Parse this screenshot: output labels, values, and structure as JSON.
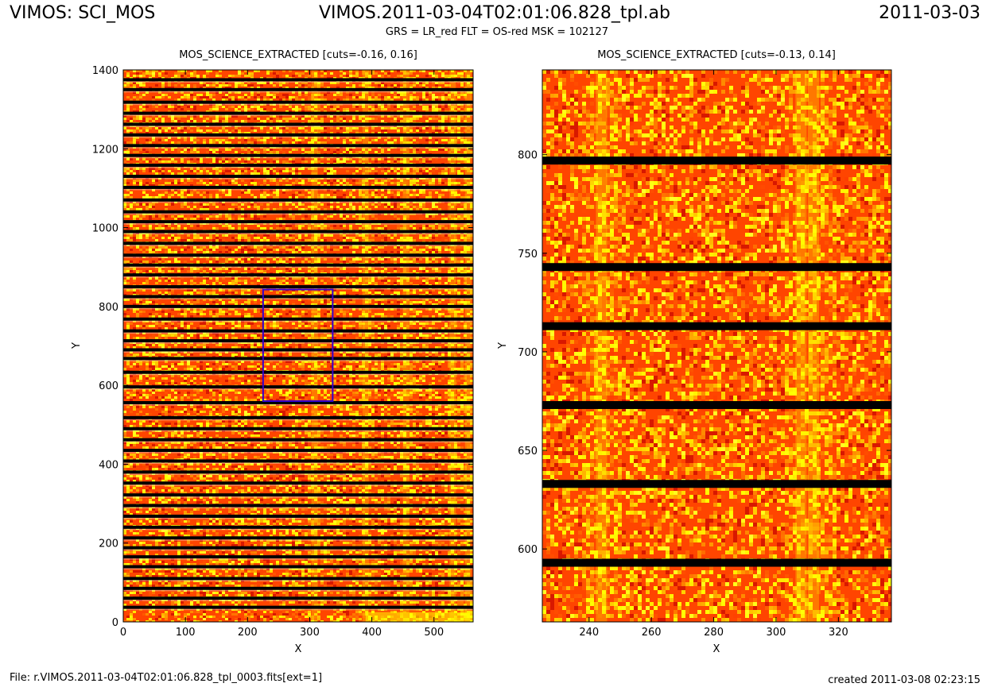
{
  "header": {
    "instrument": "VIMOS: SCI_MOS",
    "template": "VIMOS.2011-03-04T02:01:06.828_tpl.ab",
    "date": "2011-03-03",
    "subtitle": "GRS = LR_red FLT = OS-red MSK = 102127"
  },
  "footer": {
    "file": "File: r.VIMOS.2011-03-04T02:01:06.828_tpl_0003.fits[ext=1]",
    "created": "created 2011-03-08 02:23:15"
  },
  "colors": {
    "background": "#ff4500",
    "bright": "#ffff00",
    "dark": "#000000",
    "zoom_box": "#3300cc"
  },
  "chart_data": [
    {
      "type": "heatmap",
      "title": "MOS_SCIENCE_EXTRACTED [cuts=-0.16, 0.16]",
      "xlabel": "X",
      "ylabel": "Y",
      "xlim": [
        0,
        563
      ],
      "ylim": [
        0,
        1400
      ],
      "xticks": [
        0,
        100,
        200,
        300,
        400,
        500
      ],
      "yticks": [
        0,
        200,
        400,
        600,
        800,
        1000,
        1200,
        1400
      ],
      "colormap": "hot",
      "zoom_box": {
        "x0": 225,
        "x1": 337,
        "y0": 560,
        "y1": 843
      },
      "slit_gaps_y": [
        1375,
        1350,
        1318,
        1290,
        1262,
        1235,
        1208,
        1183,
        1158,
        1130,
        1102,
        1070,
        1040,
        1015,
        990,
        960,
        930,
        905,
        880,
        850,
        825,
        800,
        768,
        738,
        713,
        690,
        668,
        633,
        596,
        556,
        518,
        490,
        462,
        435,
        408,
        380,
        352,
        322,
        295,
        268,
        240,
        213,
        188,
        165,
        140,
        110,
        85,
        60,
        37
      ],
      "bright_columns_x": [
        308,
        390,
        455,
        530,
        555
      ]
    },
    {
      "type": "heatmap",
      "title": "MOS_SCIENCE_EXTRACTED [cuts=-0.13, 0.14]",
      "xlabel": "X",
      "ylabel": "Y",
      "xlim": [
        225,
        337
      ],
      "ylim": [
        563,
        843
      ],
      "xticks": [
        240,
        260,
        280,
        300,
        320
      ],
      "yticks": [
        600,
        650,
        700,
        750,
        800
      ],
      "colormap": "hot",
      "slit_gaps_y": [
        797,
        743,
        713,
        673,
        633,
        593
      ],
      "bright_columns_x": [
        244,
        308,
        312
      ]
    }
  ]
}
